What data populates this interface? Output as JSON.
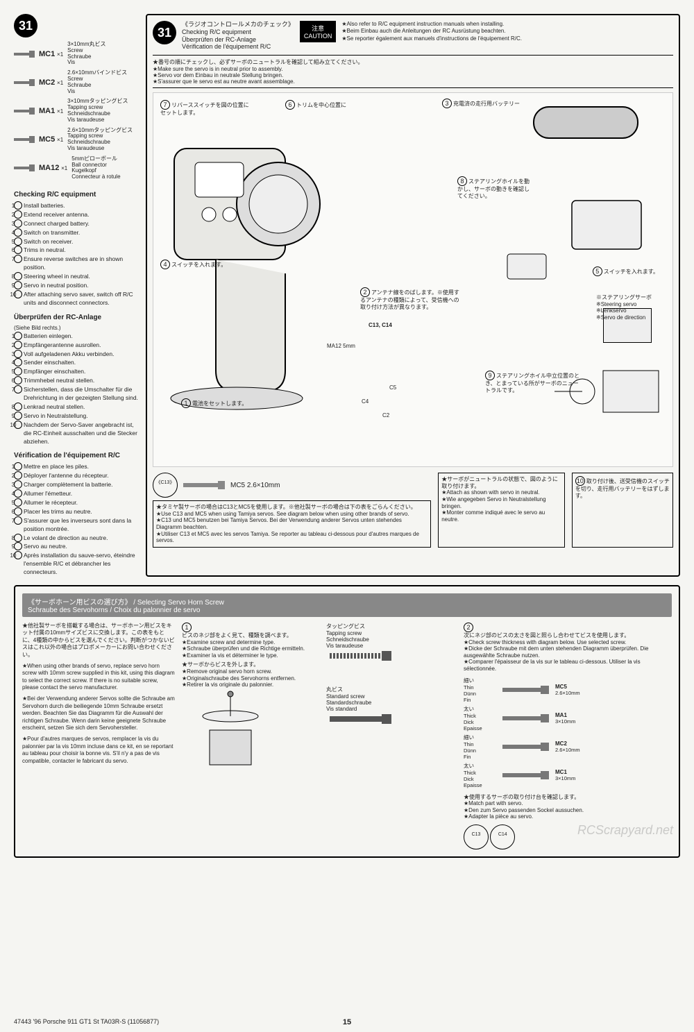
{
  "step_number": "31",
  "parts": [
    {
      "code": "MC1",
      "qty": "×1",
      "spec": "3×10mm丸ビス",
      "trans": [
        "Screw",
        "Schraube",
        "Vis"
      ]
    },
    {
      "code": "MC2",
      "qty": "×1",
      "spec": "2.6×10mmバインドビス",
      "trans": [
        "Screw",
        "Schraube",
        "Vis"
      ]
    },
    {
      "code": "MA1",
      "qty": "×1",
      "spec": "3×10mmタッピングビス",
      "trans": [
        "Tapping screw",
        "Schneidschraube",
        "Vis taraudeuse"
      ]
    },
    {
      "code": "MC5",
      "qty": "×1",
      "spec": "2.6×10mmタッピングビス",
      "trans": [
        "Tapping screw",
        "Schneidschraube",
        "Vis taraudeuse"
      ]
    },
    {
      "code": "MA12",
      "qty": "×1",
      "spec": "5mmピローボール",
      "trans": [
        "Ball connector",
        "Kugelkopf",
        "Connecteur à rotule"
      ]
    }
  ],
  "title": {
    "jp": "《ラジオコントロールメカのチェック》",
    "en": "Checking R/C equipment",
    "de": "Überprüfen der RC-Anlage",
    "fr": "Vérification de l'équipement R/C"
  },
  "caution": {
    "label_jp": "注意",
    "label_en": "CAUTION"
  },
  "caution_notes": [
    "★Also refer to R/C equipment instruction manuals when installing.",
    "★Beim Einbau auch die Anleitungen der RC Ausrüstung beachten.",
    "★Se reporter également aux manuels d'instructions de l'équipement R/C."
  ],
  "prep_bullets": {
    "jp": "★番号の順にチェックし、必ずサーボのニュートラルを確認して組み立てください。",
    "en": "★Make sure the servo is in neutral prior to assembly.",
    "de": "★Servo vor dem Einbau in neutrale Stellung bringen.",
    "fr": "★S'assurer que le servo est au neutre avant assemblage."
  },
  "callouts": {
    "c1": "電池をセットします。",
    "c2": "",
    "c3": "充電済の走行用バッテリー",
    "c4": "スイッチを入れます。",
    "c5": "スイッチを入れます。",
    "c6": "トリムを中心位置に",
    "c7": "リバーススイッチを図の位置にセットします。",
    "c8": "ステアリングホイルを動かし、サーボの動きを確認してください。",
    "c9": "ステアリングホイル中立位置のとき、とまっている所がサーボのニュートラルです。",
    "c10": "取り付け後、送受信機のスイッチを切り、走行用バッテリーをはずします。",
    "antenna": "アンテナ線をのばします。※使用するアンテナの種類によって、受信機への取り付け方法が異なります。",
    "servo_label": "※ステアリングサーボ\n※Steering servo\n※Lenkservo\n※Servo de direction"
  },
  "part_labels": {
    "c13c14": "C13, C14",
    "ma12": "MA12 5mm",
    "c5": "C5",
    "c4": "C4",
    "c2": "C2",
    "mc5": "MC5 2.6×10mm",
    "c13": "《C13》"
  },
  "servo_neutral_note": [
    "★サーボがニュートラルの状態で、図のように取り付けます。",
    "★Attach as shown with servo in neutral.",
    "★Wie angegeben Servo in Neutralstellung bringen.",
    "★Monter comme indiqué avec le servo au neutre."
  ],
  "c13_note": [
    "★タミヤ製サーボの場合はC13とMC5を使用します。※他社製サーボの場合は下の表をごらんください。",
    "★Use C13 and MC5 when using Tamiya servos. See diagram below when using other brands of servo.",
    "★C13 und MC5 benutzen bei Tamiya Servos. Bei der Verwendung anderer Servos unten stehendes Diagramm beachten.",
    "★Utiliser C13 et MC5 avec les servos Tamiya. Se reporter au tableau ci-dessous pour d'autres marques de servos."
  ],
  "checklists": {
    "en": {
      "title": "Checking R/C equipment",
      "items": [
        "Install batteries.",
        "Extend receiver antenna.",
        "Connect charged battery.",
        "Switch on transmitter.",
        "Switch on receiver.",
        "Trims in neutral.",
        "Ensure reverse switches are in shown position.",
        "Steering wheel in neutral.",
        "Servo in neutral position.",
        "After attaching servo saver, switch off R/C units and disconnect connectors."
      ]
    },
    "de": {
      "title": "Überprüfen der RC-Anlage",
      "sub": "(Siehe Bild rechts.)",
      "items": [
        "Batterien einlegen.",
        "Empfängerantenne ausrollen.",
        "Voll aufgeladenen Akku verbinden.",
        "Sender einschalten.",
        "Empfänger einschalten.",
        "Trimmhebel neutral stellen.",
        "Sicherstellen, dass die Umschalter für die Drehrichtung in der gezeigten Stellung sind.",
        "Lenkrad neutral stellen.",
        "Servo in Neutralstellung.",
        "Nachdem der Servo-Saver angebracht ist, die RC-Einheit ausschalten und die Stecker abziehen."
      ]
    },
    "fr": {
      "title": "Vérification de l'équipement R/C",
      "items": [
        "Mettre en place les piles.",
        "Déployer l'antenne du récepteur.",
        "Charger complètement la batterie.",
        "Allumer l'émetteur.",
        "Allumer le récepteur.",
        "Placer les trims au neutre.",
        "S'assurer que les inverseurs sont dans la position montrée.",
        "Le volant de direction au neutre.",
        "Servo au neutre.",
        "Après installation du sauve-servo, éteindre l'ensemble R/C et débrancher les connecteurs."
      ]
    }
  },
  "bottom": {
    "banner": "《サーボホーン用ビスの選び方》 / Selecting Servo Horn Screw\nSchraube des Servohorns / Choix du palonnier de servo",
    "left_paras": [
      "★他社製サーボを搭載する場合は、サーボホーン用ビスをキット付属の10mmサイズビスに交換します。この表をもとに、4種類の中からビスを選んでください。判断がつかないビスはこれ以外の場合はプロポメーカーにお問い合わせください。",
      "★When using other brands of servo, replace servo horn screw with 10mm screw supplied in this kit, using this diagram to select the correct screw. If there is no suitable screw, please contact the servo manufacturer.",
      "★Bei der Verwendung anderer Servos sollte die Schraube am Servohorn durch die beiliegende 10mm Schraube ersetzt werden. Beachten Sie das Diagramm für die Auswahl der richtigen Schraube. Wenn darin keine geeignete Schraube erscheint, setzen Sie sich dem Servohersteller.",
      "★Pour d'autres marques de servos, remplacer la vis du palonnier par la vis 10mm incluse dans ce kit, en se reportant au tableau pour choisir la bonne vis. S'il n'y a pas de vis compatible, contacter le fabricant du servo."
    ],
    "step1": {
      "bullets": [
        "ビスのネジ部をよく見て、種類を調べます。",
        "★Examine screw and determine type.",
        "★Schraube überprüfen und die Richtige ermitteln.",
        "★Examiner la vis et déterminer le type."
      ],
      "remove": [
        "★サーボからビスを外します。",
        "★Remove original servo horn screw.",
        "★Originalschraube des Servohorns entfernen.",
        "★Retirer la vis originale du palonnier."
      ],
      "tapping": [
        "タッピングビス",
        "Tapping screw",
        "Schneidschraube",
        "Vis taraudeuse"
      ],
      "standard": [
        "丸ビス",
        "Standard screw",
        "Standardschraube",
        "Vis standard"
      ]
    },
    "step2": {
      "bullets": [
        "次にネジ部のビスの太さを図と照らし合わせてビスを使用します。",
        "★Check screw thickness with diagram below. Use selected screw.",
        "★Dicke der Schraube mit dem unten stehenden Diagramm überprüfen. Die ausgewählte Schraube nutzen.",
        "★Comparer l'épaisseur de la vis sur le tableau ci-dessous. Utiliser la vis sélectionnée."
      ],
      "rows": [
        {
          "th": "細い\nThin\nDünn\nFin",
          "code": "MC5",
          "size": "2.6×10mm"
        },
        {
          "th": "太い\nThick\nDick\nEpaisse",
          "code": "MA1",
          "size": "3×10mm"
        },
        {
          "th": "細い\nThin\nDünn\nFin",
          "code": "MC2",
          "size": "2.6×10mm"
        },
        {
          "th": "太い\nThick\nDick\nEpaisse",
          "code": "MC1",
          "size": "3×10mm"
        }
      ],
      "match": [
        "★使用するサーボの取り付け台を確認します。",
        "★Match part with servo.",
        "★Den zum Servo passenden Sockel aussuchen.",
        "★Adapter la pièce au servo."
      ],
      "circles": [
        "C13",
        "C14"
      ]
    }
  },
  "footer": {
    "left": "47443 '96 Porsche 911 GT1 St TA03R-S (11056877)",
    "page": "15"
  },
  "watermark": "RCScrapyard.net"
}
